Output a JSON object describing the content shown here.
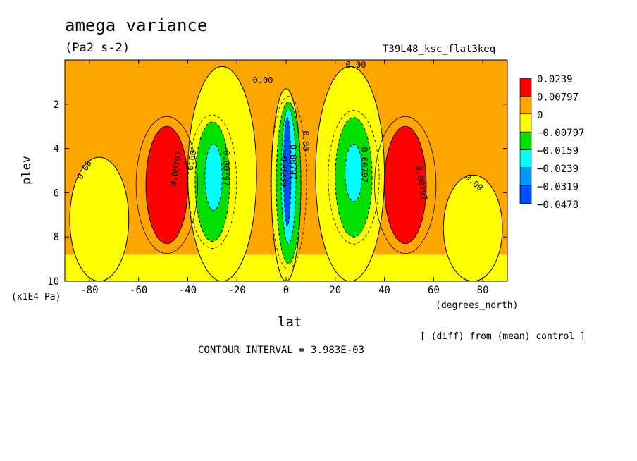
{
  "chart_data": {
    "type": "contour",
    "title": "amega variance",
    "units": "(Pa2 s-2)",
    "run_label": "T39L48_ksc_flat3keq",
    "xlabel": "lat",
    "x_units": "(degrees_north)",
    "ylabel": "plev",
    "y_units": "(x1E4 Pa)",
    "xlim": [
      -90,
      90
    ],
    "ylim": [
      10,
      0
    ],
    "x_ticks": [
      -80,
      -60,
      -40,
      -20,
      0,
      20,
      40,
      60,
      80
    ],
    "x_tick_labels": [
      "-80",
      "-60",
      "-40",
      "-20",
      "0",
      "20",
      "40",
      "60",
      "80"
    ],
    "y_ticks": [
      2,
      4,
      6,
      8,
      10
    ],
    "y_tick_labels": [
      "2",
      "4",
      "6",
      "8",
      "10"
    ],
    "contour_interval_text": "CONTOUR INTERVAL = 3.983E-03",
    "note": "[ (diff) from (mean) control ]",
    "color_levels": [
      {
        "label": "0.0239",
        "color": "#ff0000"
      },
      {
        "label": "0.00797",
        "color": "#ffa500"
      },
      {
        "label": "0",
        "color": "#ffff00"
      },
      {
        "label": "−0.00797",
        "color": "#00e000"
      },
      {
        "label": "−0.0159",
        "color": "#00ffff"
      },
      {
        "label": "−0.0239",
        "color": "#0099ff"
      },
      {
        "label": "−0.0319",
        "color": "#0050ff"
      },
      {
        "label": "−0.0478",
        "color": null
      }
    ],
    "regions": [
      {
        "level": "neg-small",
        "color": "#ffff00",
        "lat": [
          -90,
          90
        ],
        "plev": [
          8.8,
          10
        ]
      },
      {
        "level": "neg-small",
        "color": "#ffff00",
        "lat": [
          -40,
          -12
        ],
        "plev": [
          0.3,
          10
        ]
      },
      {
        "level": "neg-small",
        "color": "#ffff00",
        "lat": [
          12,
          40
        ],
        "plev": [
          0.3,
          10
        ]
      },
      {
        "level": "neg-small",
        "color": "#ffff00",
        "lat": [
          -88,
          -64
        ],
        "plev": [
          4.4,
          10
        ]
      },
      {
        "level": "neg-small",
        "color": "#ffff00",
        "lat": [
          64,
          88
        ],
        "plev": [
          5.2,
          10
        ]
      },
      {
        "level": "neg-small",
        "color": "#ffff00",
        "lat": [
          -6,
          6
        ],
        "plev": [
          1.3,
          10
        ]
      },
      {
        "level": "pos-large",
        "color": "#ff0000",
        "lat": [
          -57,
          -40
        ],
        "plev": [
          3.0,
          8.3
        ]
      },
      {
        "level": "pos-large",
        "color": "#ff0000",
        "lat": [
          40,
          57
        ],
        "plev": [
          3.0,
          8.3
        ]
      },
      {
        "level": "neg-mid",
        "color": "#00e000",
        "lat": [
          -37,
          -23
        ],
        "plev": [
          2.8,
          8.2
        ]
      },
      {
        "level": "neg-mid",
        "color": "#00e000",
        "lat": [
          20,
          35
        ],
        "plev": [
          2.6,
          8.0
        ]
      },
      {
        "level": "neg-mid",
        "color": "#00e000",
        "lat": [
          -4,
          6
        ],
        "plev": [
          1.9,
          9.2
        ]
      },
      {
        "level": "neg-larger",
        "color": "#00ffff",
        "lat": [
          -33,
          -26
        ],
        "plev": [
          3.8,
          6.8
        ]
      },
      {
        "level": "neg-larger",
        "color": "#00ffff",
        "lat": [
          24,
          31
        ],
        "plev": [
          3.8,
          6.4
        ]
      },
      {
        "level": "neg-larger",
        "color": "#00ffff",
        "lat": [
          -2,
          4
        ],
        "plev": [
          2.2,
          8.3
        ]
      },
      {
        "level": "neg-largest",
        "color": "#0050ff",
        "lat": [
          -1,
          2
        ],
        "plev": [
          2.6,
          7.5
        ]
      }
    ],
    "contour_labels": [
      "0.00",
      "0.00",
      "0.00",
      "0.00",
      "0.00797",
      "0.00797",
      "0.00797",
      "0.00",
      "0.00",
      "-0.00797",
      "-0.00797",
      "-0.0239"
    ]
  }
}
